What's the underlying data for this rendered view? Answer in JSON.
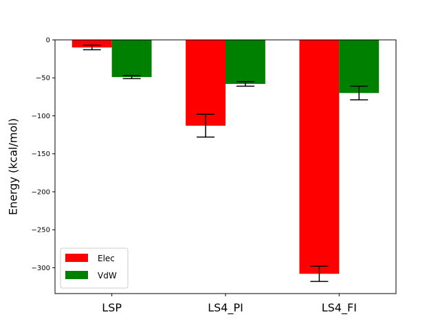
{
  "chart_data": {
    "type": "bar",
    "title": "",
    "xlabel": "",
    "ylabel": "Energy (kcal/mol)",
    "categories": [
      "LSP",
      "LS4_PI",
      "LS4_FI"
    ],
    "series": [
      {
        "name": "Elec",
        "color": "#ff0000",
        "values": [
          -10,
          -113,
          -308
        ],
        "error": [
          3,
          15,
          10
        ]
      },
      {
        "name": "VdW",
        "color": "#008000",
        "values": [
          -49,
          -58,
          -70
        ],
        "error": [
          2,
          3,
          9
        ]
      }
    ],
    "ylim": [
      -334,
      0
    ],
    "yticks": [
      0,
      -50,
      -100,
      -150,
      -200,
      -250,
      -300
    ],
    "ytick_labels": [
      "0",
      "−50",
      "−100",
      "−150",
      "−200",
      "−250",
      "−300"
    ],
    "grid": false,
    "legend": "lower-left"
  }
}
